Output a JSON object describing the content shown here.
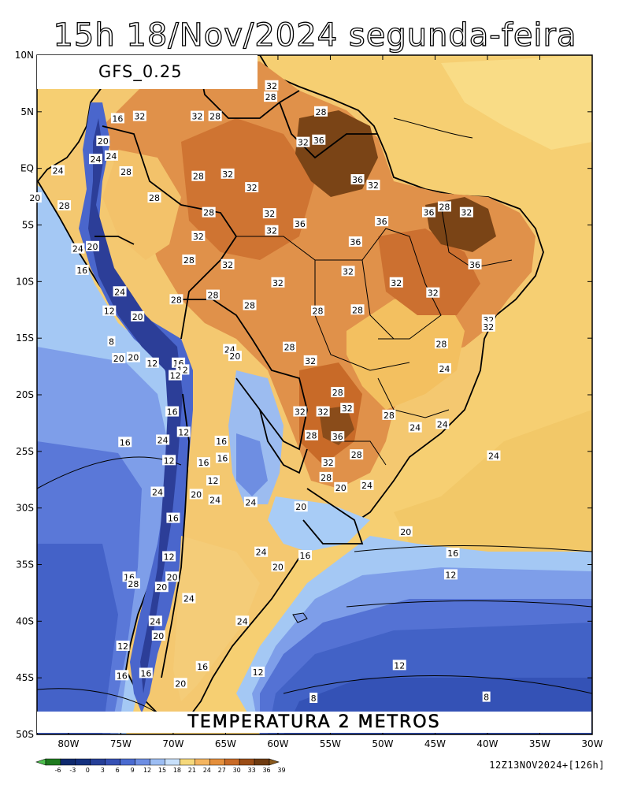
{
  "header": {
    "title": "15h 18/Nov/2024 segunda-feira"
  },
  "map": {
    "model": "GFS_0.25",
    "variable": "TEMPERATURA 2 METROS",
    "run_info": "12Z13NOV2024+[126h]",
    "lat_labels": [
      "10N",
      "5N",
      "EQ",
      "5S",
      "10S",
      "15S",
      "20S",
      "25S",
      "30S",
      "35S",
      "40S",
      "45S",
      "50S"
    ],
    "lon_labels": [
      "80W",
      "75W",
      "70W",
      "65W",
      "60W",
      "55W",
      "50W",
      "45W",
      "40W",
      "35W",
      "30W"
    ],
    "contour_labels": [
      {
        "t": "16",
        "lon": -75.3,
        "lat": 4.4
      },
      {
        "t": "32",
        "lon": -73.2,
        "lat": 4.6
      },
      {
        "t": "32",
        "lon": -67.7,
        "lat": 4.6
      },
      {
        "t": "28",
        "lon": -66.0,
        "lat": 4.6
      },
      {
        "t": "32",
        "lon": -60.6,
        "lat": 7.3
      },
      {
        "t": "28",
        "lon": -60.7,
        "lat": 6.3
      },
      {
        "t": "28",
        "lon": -55.9,
        "lat": 5.0
      },
      {
        "t": "32",
        "lon": -57.6,
        "lat": 2.3
      },
      {
        "t": "36",
        "lon": -56.1,
        "lat": 2.5
      },
      {
        "t": "20",
        "lon": -76.7,
        "lat": 2.4
      },
      {
        "t": "24",
        "lon": -75.9,
        "lat": 1.1
      },
      {
        "t": "24",
        "lon": -77.4,
        "lat": 0.8
      },
      {
        "t": "24",
        "lon": -81.0,
        "lat": -0.2
      },
      {
        "t": "28",
        "lon": -74.5,
        "lat": -0.3
      },
      {
        "t": "28",
        "lon": -67.6,
        "lat": -0.7
      },
      {
        "t": "32",
        "lon": -64.8,
        "lat": -0.5
      },
      {
        "t": "36",
        "lon": -52.4,
        "lat": -1.0
      },
      {
        "t": "32",
        "lon": -50.9,
        "lat": -1.5
      },
      {
        "t": "32",
        "lon": -62.5,
        "lat": -1.7
      },
      {
        "t": "20",
        "lon": -83.2,
        "lat": -2.6
      },
      {
        "t": "28",
        "lon": -71.8,
        "lat": -2.6
      },
      {
        "t": "28",
        "lon": -80.4,
        "lat": -3.3
      },
      {
        "t": "28",
        "lon": -44.1,
        "lat": -3.4
      },
      {
        "t": "32",
        "lon": -42.0,
        "lat": -3.9
      },
      {
        "t": "36",
        "lon": -45.6,
        "lat": -3.9
      },
      {
        "t": "28",
        "lon": -66.6,
        "lat": -3.9
      },
      {
        "t": "32",
        "lon": -60.8,
        "lat": -4.0
      },
      {
        "t": "36",
        "lon": -57.9,
        "lat": -4.9
      },
      {
        "t": "36",
        "lon": -50.1,
        "lat": -4.7
      },
      {
        "t": "32",
        "lon": -60.6,
        "lat": -5.5
      },
      {
        "t": "32",
        "lon": -67.6,
        "lat": -6.0
      },
      {
        "t": "36",
        "lon": -52.6,
        "lat": -6.5
      },
      {
        "t": "24",
        "lon": -79.1,
        "lat": -7.1
      },
      {
        "t": "20",
        "lon": -77.7,
        "lat": -6.9
      },
      {
        "t": "28",
        "lon": -68.5,
        "lat": -8.1
      },
      {
        "t": "32",
        "lon": -64.8,
        "lat": -8.5
      },
      {
        "t": "36",
        "lon": -41.2,
        "lat": -8.5
      },
      {
        "t": "16",
        "lon": -78.7,
        "lat": -9.0
      },
      {
        "t": "32",
        "lon": -53.3,
        "lat": -9.1
      },
      {
        "t": "32",
        "lon": -48.7,
        "lat": -10.1
      },
      {
        "t": "32",
        "lon": -60.0,
        "lat": -10.1
      },
      {
        "t": "32",
        "lon": -45.2,
        "lat": -11.0
      },
      {
        "t": "24",
        "lon": -75.1,
        "lat": -10.9
      },
      {
        "t": "28",
        "lon": -66.2,
        "lat": -11.2
      },
      {
        "t": "28",
        "lon": -69.7,
        "lat": -11.6
      },
      {
        "t": "28",
        "lon": -62.7,
        "lat": -12.1
      },
      {
        "t": "28",
        "lon": -56.2,
        "lat": -12.6
      },
      {
        "t": "28",
        "lon": -52.4,
        "lat": -12.5
      },
      {
        "t": "12",
        "lon": -76.1,
        "lat": -12.6
      },
      {
        "t": "20",
        "lon": -73.4,
        "lat": -13.1
      },
      {
        "t": "32",
        "lon": -39.9,
        "lat": -13.4
      },
      {
        "t": "32",
        "lon": -39.9,
        "lat": -14.0
      },
      {
        "t": "8",
        "lon": -75.9,
        "lat": -15.3
      },
      {
        "t": "28",
        "lon": -44.4,
        "lat": -15.5
      },
      {
        "t": "28",
        "lon": -58.9,
        "lat": -15.8
      },
      {
        "t": "24",
        "lon": -64.6,
        "lat": -16.0
      },
      {
        "t": "20",
        "lon": -64.1,
        "lat": -16.6
      },
      {
        "t": "20",
        "lon": -75.2,
        "lat": -16.8
      },
      {
        "t": "20",
        "lon": -73.8,
        "lat": -16.7
      },
      {
        "t": "12",
        "lon": -72.0,
        "lat": -17.2
      },
      {
        "t": "32",
        "lon": -56.9,
        "lat": -17.0
      },
      {
        "t": "16",
        "lon": -69.5,
        "lat": -17.2
      },
      {
        "t": "12",
        "lon": -69.1,
        "lat": -17.8
      },
      {
        "t": "24",
        "lon": -44.1,
        "lat": -17.7
      },
      {
        "t": "12",
        "lon": -69.8,
        "lat": -18.3
      },
      {
        "t": "28",
        "lon": -54.3,
        "lat": -19.8
      },
      {
        "t": "32",
        "lon": -53.4,
        "lat": -21.2
      },
      {
        "t": "32",
        "lon": -57.9,
        "lat": -21.5
      },
      {
        "t": "32",
        "lon": -55.7,
        "lat": -21.5
      },
      {
        "t": "16",
        "lon": -70.1,
        "lat": -21.5
      },
      {
        "t": "28",
        "lon": -49.4,
        "lat": -21.8
      },
      {
        "t": "24",
        "lon": -46.9,
        "lat": -22.9
      },
      {
        "t": "24",
        "lon": -44.3,
        "lat": -22.6
      },
      {
        "t": "12",
        "lon": -69.0,
        "lat": -23.3
      },
      {
        "t": "28",
        "lon": -56.8,
        "lat": -23.6
      },
      {
        "t": "36",
        "lon": -54.3,
        "lat": -23.7
      },
      {
        "t": "24",
        "lon": -71.0,
        "lat": -24.0
      },
      {
        "t": "16",
        "lon": -65.4,
        "lat": -24.1
      },
      {
        "t": "16",
        "lon": -74.6,
        "lat": -24.2
      },
      {
        "t": "28",
        "lon": -52.5,
        "lat": -25.3
      },
      {
        "t": "16",
        "lon": -65.3,
        "lat": -25.6
      },
      {
        "t": "24",
        "lon": -39.4,
        "lat": -25.4
      },
      {
        "t": "12",
        "lon": -70.4,
        "lat": -25.8
      },
      {
        "t": "16",
        "lon": -67.1,
        "lat": -26.0
      },
      {
        "t": "32",
        "lon": -55.2,
        "lat": -26.0
      },
      {
        "t": "28",
        "lon": -55.4,
        "lat": -27.3
      },
      {
        "t": "12",
        "lon": -66.2,
        "lat": -27.6
      },
      {
        "t": "20",
        "lon": -54.0,
        "lat": -28.2
      },
      {
        "t": "24",
        "lon": -51.5,
        "lat": -28.0
      },
      {
        "t": "24",
        "lon": -71.5,
        "lat": -28.6
      },
      {
        "t": "20",
        "lon": -67.8,
        "lat": -28.8
      },
      {
        "t": "24",
        "lon": -66.0,
        "lat": -29.3
      },
      {
        "t": "24",
        "lon": -62.6,
        "lat": -29.5
      },
      {
        "t": "20",
        "lon": -57.8,
        "lat": -29.9
      },
      {
        "t": "16",
        "lon": -70.0,
        "lat": -30.9
      },
      {
        "t": "20",
        "lon": -47.8,
        "lat": -32.1
      },
      {
        "t": "24",
        "lon": -61.6,
        "lat": -33.9
      },
      {
        "t": "16",
        "lon": -57.4,
        "lat": -34.2
      },
      {
        "t": "16",
        "lon": -43.3,
        "lat": -34.0
      },
      {
        "t": "12",
        "lon": -70.4,
        "lat": -34.3
      },
      {
        "t": "20",
        "lon": -60.0,
        "lat": -35.2
      },
      {
        "t": "12",
        "lon": -43.5,
        "lat": -35.9
      },
      {
        "t": "16",
        "lon": -74.2,
        "lat": -36.1
      },
      {
        "t": "20",
        "lon": -70.1,
        "lat": -36.1
      },
      {
        "t": "28",
        "lon": -73.8,
        "lat": -36.7
      },
      {
        "t": "20",
        "lon": -71.1,
        "lat": -37.0
      },
      {
        "t": "24",
        "lon": -68.5,
        "lat": -38.0
      },
      {
        "t": "24",
        "lon": -71.7,
        "lat": -40.0
      },
      {
        "t": "24",
        "lon": -63.4,
        "lat": -40.0
      },
      {
        "t": "20",
        "lon": -71.4,
        "lat": -41.3
      },
      {
        "t": "12",
        "lon": -74.8,
        "lat": -42.2
      },
      {
        "t": "16",
        "lon": -67.2,
        "lat": -44.0
      },
      {
        "t": "12",
        "lon": -48.4,
        "lat": -43.9
      },
      {
        "t": "12",
        "lon": -61.9,
        "lat": -44.5
      },
      {
        "t": "16",
        "lon": -74.9,
        "lat": -44.8
      },
      {
        "t": "16",
        "lon": -72.6,
        "lat": -44.6
      },
      {
        "t": "20",
        "lon": -69.3,
        "lat": -45.5
      },
      {
        "t": "8",
        "lon": -56.6,
        "lat": -46.8
      },
      {
        "t": "8",
        "lon": -40.1,
        "lat": -46.7
      }
    ],
    "colorbar": {
      "ticks": [
        "-6",
        "-3",
        "0",
        "3",
        "6",
        "9",
        "12",
        "15",
        "18",
        "21",
        "24",
        "27",
        "30",
        "33",
        "36",
        "39"
      ],
      "colors": [
        "#4ec04e",
        "#1e7a1e",
        "#0f2a6e",
        "#14307e",
        "#263f97",
        "#3550b4",
        "#4a6bd0",
        "#6e8ee3",
        "#9cbdf3",
        "#c8e0fb",
        "#f5d87b",
        "#f4b560",
        "#e48f3c",
        "#c86a26",
        "#9a4c16",
        "#6e3a10",
        "#8a5a1e"
      ]
    },
    "colors": {
      "warm_ocean": "#f7d276",
      "sea_cool": "#a4c8f4",
      "sea_mid": "#6886e0",
      "sea_deep": "#4060c6",
      "sea_cold": "#3450b4",
      "land_orange": "#e0914a",
      "land_dark": "#7a4416",
      "land_pale": "#f6d07e",
      "andes": "#3048b0"
    }
  }
}
